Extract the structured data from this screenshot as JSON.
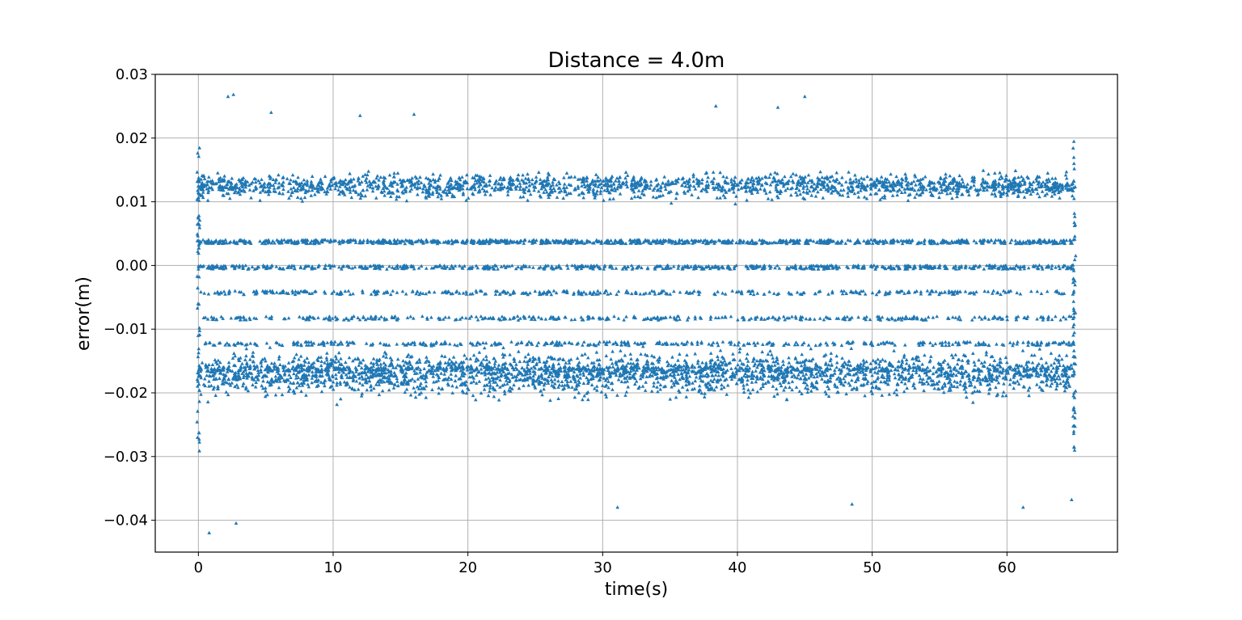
{
  "chart_data": {
    "type": "scatter",
    "title": "Distance = 4.0m",
    "xlabel": "time(s)",
    "ylabel": "error(m)",
    "xlim": [
      -3.2,
      68.2
    ],
    "ylim": [
      -0.045,
      0.03
    ],
    "xticks": [
      0,
      10,
      20,
      30,
      40,
      50,
      60
    ],
    "xtick_labels": [
      "0",
      "10",
      "20",
      "30",
      "40",
      "50",
      "60"
    ],
    "yticks": [
      0.03,
      0.02,
      0.01,
      0.0,
      -0.01,
      -0.02,
      -0.03,
      -0.04
    ],
    "ytick_labels": [
      "0.03",
      "0.02",
      "0.01",
      "0.00",
      "−0.01",
      "−0.02",
      "−0.03",
      "−0.04"
    ],
    "grid": true,
    "marker": "triangle-up",
    "color": "#1f77b4",
    "series": [
      {
        "sample_points": [
          [
            0.8,
            -0.042
          ],
          [
            2.2,
            0.0265
          ],
          [
            2.6,
            0.0268
          ],
          [
            2.8,
            -0.0405
          ],
          [
            5.4,
            0.024
          ],
          [
            12,
            0.0235
          ],
          [
            16,
            0.0237
          ],
          [
            31.1,
            -0.038
          ],
          [
            38.4,
            0.025
          ],
          [
            43,
            0.0248
          ],
          [
            45,
            0.0265
          ],
          [
            48.5,
            -0.0375
          ],
          [
            61.2,
            -0.038
          ],
          [
            64.8,
            -0.0368
          ]
        ],
        "x_range": [
          0,
          65
        ],
        "y_range": [
          -0.042,
          0.027
        ],
        "dense_bands_y": [
          0.0037,
          -0.0003,
          -0.0043,
          -0.0083,
          -0.0123,
          -0.0163
        ]
      }
    ]
  }
}
